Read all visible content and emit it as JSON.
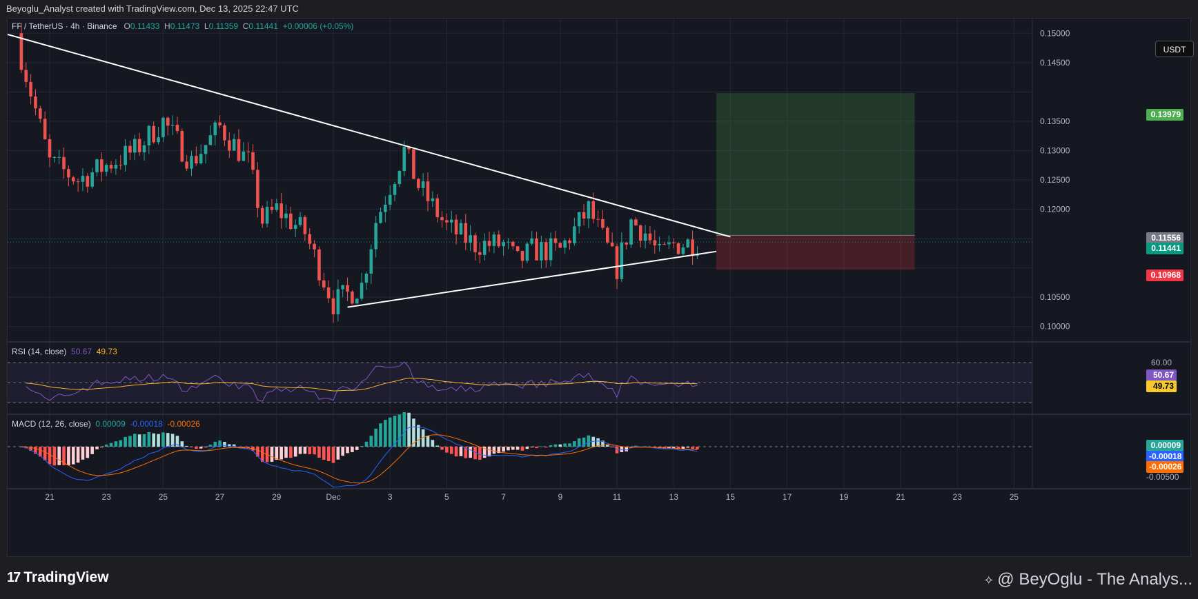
{
  "header": {
    "caption": "Beyoglu_Analyst created with TradingView.com, Dec 13, 2025 22:47 UTC"
  },
  "legend": {
    "symbol": "FF / TetherUS · 4h · Binance",
    "o_key": "O",
    "o_val": "0.11433",
    "h_key": "H",
    "h_val": "0.11473",
    "l_key": "L",
    "l_val": "0.11359",
    "c_key": "C",
    "c_val": "0.11441",
    "change": "+0.00006 (+0.05%)"
  },
  "currency_button": "USDT",
  "price_tags": {
    "target": "0.13979",
    "entry": "0.11556",
    "last": "0.11441",
    "stop": "0.10968"
  },
  "rsi": {
    "label": "RSI (14, close)",
    "rsi_val": "50.67",
    "ma_val": "49.73",
    "axis_60": "60.00"
  },
  "macd": {
    "label": "MACD (12, 26, close)",
    "hist_val": "0.00009",
    "macd_val": "-0.00018",
    "signal_val": "-0.00026",
    "axis_low": "-0.00500"
  },
  "footer": {
    "brand": "TradingView",
    "author": "@ BeyOglu - The Analys..."
  },
  "colors": {
    "up": "#26a69a",
    "down": "#ef5350",
    "rsi_line": "#7e57c2",
    "rsi_ma": "#f7b42c",
    "macd_line": "#2962ff",
    "signal_line": "#ff6d00"
  },
  "chart_data": {
    "type": "candlestick",
    "title": "FF / TetherUS · 4h · Binance",
    "y_ticks": [
      "0.15000",
      "0.14500",
      "0.13500",
      "0.13000",
      "0.12500",
      "0.12000",
      "0.10500",
      "0.10000"
    ],
    "x_ticks": [
      "21",
      "23",
      "25",
      "27",
      "29",
      "Dec",
      "3",
      "5",
      "7",
      "9",
      "11",
      "13",
      "15",
      "17",
      "19",
      "21",
      "23",
      "25"
    ],
    "ylim": [
      0.0975,
      0.1525
    ],
    "anchors": [
      [
        "2025-11-20",
        0.146
      ],
      [
        "2025-11-21",
        0.128
      ],
      [
        "2025-11-22",
        0.125
      ],
      [
        "2025-11-24",
        0.13
      ],
      [
        "2025-11-25",
        0.135
      ],
      [
        "2025-11-26",
        0.128
      ],
      [
        "2025-11-27",
        0.134
      ],
      [
        "2025-11-28",
        0.128
      ],
      [
        "2025-11-28T12",
        0.118
      ],
      [
        "2025-11-29",
        0.12
      ],
      [
        "2025-11-30",
        0.116
      ],
      [
        "2025-12-01",
        0.104
      ],
      [
        "2025-12-02",
        0.107
      ],
      [
        "2025-12-02T12",
        0.118
      ],
      [
        "2025-12-03",
        0.124
      ],
      [
        "2025-12-03T12",
        0.13
      ],
      [
        "2025-12-04",
        0.124
      ],
      [
        "2025-12-05",
        0.117
      ],
      [
        "2025-12-06",
        0.114
      ],
      [
        "2025-12-07",
        0.114
      ],
      [
        "2025-12-07T12",
        0.111
      ],
      [
        "2025-12-08",
        0.113
      ],
      [
        "2025-12-09",
        0.113
      ],
      [
        "2025-12-10",
        0.12
      ],
      [
        "2025-12-11",
        0.11
      ],
      [
        "2025-12-11T12",
        0.118
      ],
      [
        "2025-12-12",
        0.116
      ],
      [
        "2025-12-12T12",
        0.112
      ],
      [
        "2025-12-13",
        0.114
      ],
      [
        "2025-12-13T22",
        0.1144
      ]
    ],
    "trendlines": [
      {
        "name": "descending resistance",
        "from": [
          "2025-11-19",
          0.1505
        ],
        "to": [
          "2025-12-15",
          0.1153
        ]
      },
      {
        "name": "ascending support",
        "from": [
          "2025-12-01T12",
          0.1033
        ],
        "to": [
          "2025-12-14T12",
          0.1128
        ]
      }
    ],
    "position": {
      "type": "long",
      "entry": 0.11556,
      "target": 0.13979,
      "stop": 0.10968,
      "start": "2025-12-14T12",
      "end": "2025-12-21T12"
    },
    "last_price": 0.11441,
    "rsi": {
      "name": "RSI (14, close)",
      "upper": 70,
      "middle": 50,
      "lower": 30,
      "last": 50.67,
      "ma_last": 49.73
    },
    "macd": {
      "name": "MACD (12, 26, close)",
      "histogram_last": 9e-05,
      "macd_last": -0.00018,
      "signal_last": -0.00026
    }
  }
}
